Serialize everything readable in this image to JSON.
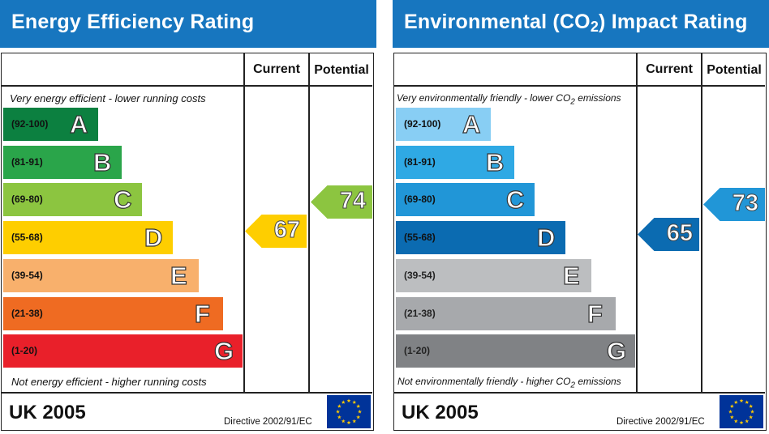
{
  "chart_data": [
    {
      "type": "bar",
      "title": "Energy Efficiency Rating",
      "columns": [
        "Current",
        "Potential"
      ],
      "top_caption": "Very energy efficient - lower running costs",
      "bottom_caption": "Not energy efficient - higher running costs",
      "bands": [
        {
          "letter": "A",
          "range": "(92-100)",
          "color": "#0c8040"
        },
        {
          "letter": "B",
          "range": "(81-91)",
          "color": "#2aa54a"
        },
        {
          "letter": "C",
          "range": "(69-80)",
          "color": "#8cc540"
        },
        {
          "letter": "D",
          "range": "(55-68)",
          "color": "#fece00"
        },
        {
          "letter": "E",
          "range": "(39-54)",
          "color": "#f8b06c"
        },
        {
          "letter": "F",
          "range": "(21-38)",
          "color": "#ef6b22"
        },
        {
          "letter": "G",
          "range": "(1-20)",
          "color": "#e9202a"
        }
      ],
      "current": {
        "value": 67,
        "band": "D",
        "color": "#fece00"
      },
      "potential": {
        "value": 74,
        "band": "C",
        "color": "#8cc540"
      },
      "footer": {
        "country": "UK 2005",
        "directive": "Directive 2002/91/EC"
      }
    },
    {
      "type": "bar",
      "title_main": "Environmental (CO",
      "title_sub": "2",
      "title_end": ") Impact Rating",
      "columns": [
        "Current",
        "Potential"
      ],
      "top_caption_main": "Very environmentally friendly - lower CO",
      "top_caption_sub": "2",
      "top_caption_end": " emissions",
      "bottom_caption_main": "Not environmentally friendly - higher CO",
      "bottom_caption_sub": "2",
      "bottom_caption_end": " emissions",
      "bands": [
        {
          "letter": "A",
          "range": "(92-100)",
          "color": "#88cef4"
        },
        {
          "letter": "B",
          "range": "(81-91)",
          "color": "#2fa9e4"
        },
        {
          "letter": "C",
          "range": "(69-80)",
          "color": "#2196d7"
        },
        {
          "letter": "D",
          "range": "(55-68)",
          "color": "#0b6bb1"
        },
        {
          "letter": "E",
          "range": "(39-54)",
          "color": "#bcbec0"
        },
        {
          "letter": "F",
          "range": "(21-38)",
          "color": "#a7a9ac"
        },
        {
          "letter": "G",
          "range": "(1-20)",
          "color": "#808285"
        }
      ],
      "current": {
        "value": 65,
        "band": "D",
        "color": "#0b6bb1"
      },
      "potential": {
        "value": 73,
        "band": "C",
        "color": "#2196d7"
      },
      "footer": {
        "country": "UK 2005",
        "directive": "Directive 2002/91/EC"
      }
    }
  ],
  "colors": {
    "title_bar": "#1776bf",
    "flag_blue": "#003399",
    "flag_star": "#ffcc00"
  },
  "icons": {
    "flag": "eu-flag-icon"
  }
}
